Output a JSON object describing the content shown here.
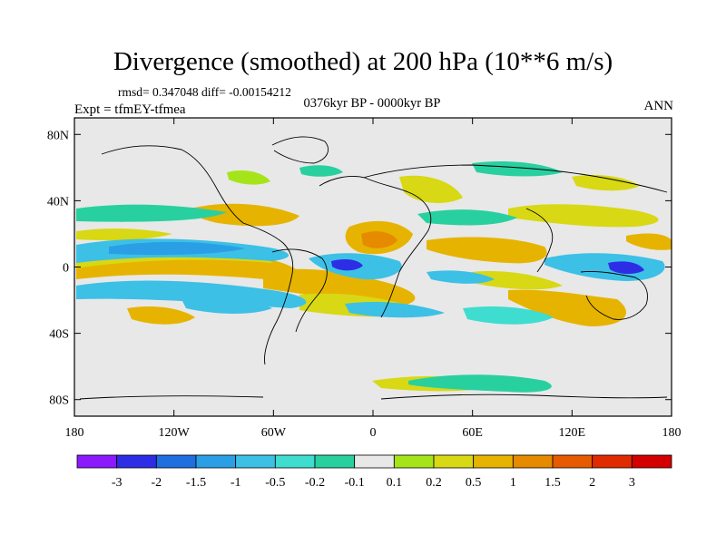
{
  "title": "Divergence (smoothed) at 200 hPa (10**6 m/s)",
  "stats": "rmsd= 0.347048 diff= -0.00154212",
  "period": "0376kyr BP - 0000kyr BP",
  "experiment": "Expt = tfmEY-tfmea",
  "season": "ANN",
  "map": {
    "projection": "cylindrical equidistant",
    "lon_range": [
      -180,
      180
    ],
    "lat_range": [
      -90,
      90
    ],
    "background_color": "#e8e8e8",
    "lon_ticks": [
      {
        "value": -180,
        "label": "180"
      },
      {
        "value": -120,
        "label": "120W"
      },
      {
        "value": -60,
        "label": "60W"
      },
      {
        "value": 0,
        "label": "0"
      },
      {
        "value": 60,
        "label": "60E"
      },
      {
        "value": 120,
        "label": "120E"
      },
      {
        "value": 180,
        "label": "180"
      }
    ],
    "lat_ticks": [
      {
        "value": 80,
        "label": "80N"
      },
      {
        "value": 40,
        "label": "40N"
      },
      {
        "value": 0,
        "label": "0"
      },
      {
        "value": -40,
        "label": "40S"
      },
      {
        "value": -80,
        "label": "80S"
      }
    ]
  },
  "colorbar": {
    "colors": [
      "#8b1aff",
      "#2d2de6",
      "#1f6fe0",
      "#2b9fe6",
      "#3cc0e6",
      "#3fdcd0",
      "#28d0a0",
      "#e8e8e8",
      "#a6e41a",
      "#d8d814",
      "#e6b400",
      "#e68a00",
      "#e65a00",
      "#e02a00",
      "#d40000"
    ],
    "labels": [
      "-3",
      "-2",
      "-1.5",
      "-1",
      "-0.5",
      "-0.2",
      "-0.1",
      "0.1",
      "0.2",
      "0.5",
      "1",
      "1.5",
      "2",
      "3"
    ]
  }
}
